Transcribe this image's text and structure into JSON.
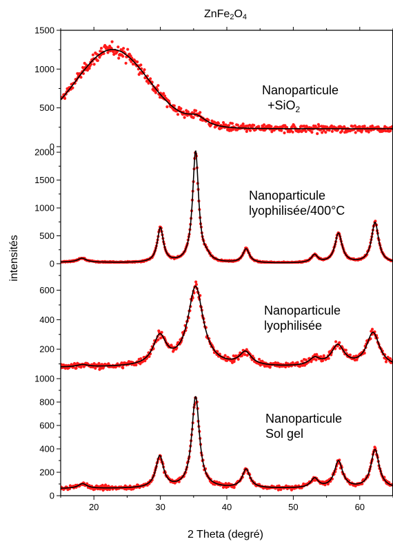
{
  "chart_data": {
    "type": "line",
    "title_parts": [
      {
        "text": "ZnFe",
        "sub": false
      },
      {
        "text": "2",
        "sub": true
      },
      {
        "text": "O",
        "sub": false
      },
      {
        "text": "4",
        "sub": true
      }
    ],
    "xlabel": "2 Theta (degré)",
    "ylabel": "intensités",
    "xlim": [
      15,
      65
    ],
    "xticks": [
      20,
      30,
      40,
      50,
      60
    ],
    "grid": false,
    "colors": {
      "measured": "#ff1a1a",
      "fit": "#000000",
      "axis": "#000000"
    },
    "series_styles": {
      "measured": "dotted red markers",
      "fit": "solid black line"
    },
    "panels": [
      {
        "annotation": [
          {
            "parts": [
              {
                "text": "Nanoparticule",
                "sub": false
              }
            ]
          },
          {
            "parts": [
              {
                "text": "+SiO",
                "sub": false
              },
              {
                "text": "2",
                "sub": true
              }
            ]
          }
        ],
        "ylim": [
          0,
          1500
        ],
        "yticks": [
          0,
          500,
          1000,
          1500
        ],
        "baseline": 230,
        "background": [
          {
            "amp": 1020,
            "center": 22.8,
            "width": 5.5
          }
        ],
        "peaks": [
          {
            "center": 35.5,
            "height": 110,
            "width": 1.8
          }
        ],
        "noise": 35
      },
      {
        "annotation": [
          {
            "parts": [
              {
                "text": "Nanoparticule",
                "sub": false
              }
            ]
          },
          {
            "parts": [
              {
                "text": "lyophilisée/400°C",
                "sub": false
              }
            ]
          }
        ],
        "ylim": [
          0,
          2100
        ],
        "yticks": [
          0,
          500,
          1000,
          1500,
          2000
        ],
        "baseline": 5,
        "background": [
          {
            "amp": 20,
            "center": 15,
            "width": 8
          }
        ],
        "peaks": [
          {
            "center": 18.2,
            "height": 70,
            "width": 0.8
          },
          {
            "center": 30.0,
            "height": 620,
            "width": 0.55
          },
          {
            "center": 35.3,
            "height": 2000,
            "width": 0.55
          },
          {
            "center": 37.0,
            "height": 70,
            "width": 0.6
          },
          {
            "center": 42.9,
            "height": 250,
            "width": 0.6
          },
          {
            "center": 53.2,
            "height": 140,
            "width": 0.6
          },
          {
            "center": 56.8,
            "height": 530,
            "width": 0.65
          },
          {
            "center": 62.3,
            "height": 730,
            "width": 0.65
          }
        ],
        "noise": 8
      },
      {
        "annotation": [
          {
            "parts": [
              {
                "text": "Nanoparticule",
                "sub": false
              }
            ]
          },
          {
            "parts": [
              {
                "text": "lyophilisée",
                "sub": false
              }
            ]
          }
        ],
        "ylim": [
          0,
          780
        ],
        "yticks": [
          200,
          400,
          600
        ],
        "baseline": 75,
        "background": [],
        "peaks": [
          {
            "center": 18.3,
            "height": 15,
            "width": 1.0
          },
          {
            "center": 29.9,
            "height": 195,
            "width": 1.2
          },
          {
            "center": 35.3,
            "height": 540,
            "width": 1.4
          },
          {
            "center": 42.8,
            "height": 90,
            "width": 1.1
          },
          {
            "center": 53.2,
            "height": 50,
            "width": 1.0
          },
          {
            "center": 56.7,
            "height": 140,
            "width": 1.2
          },
          {
            "center": 62.0,
            "height": 230,
            "width": 1.2
          }
        ],
        "noise": 14
      },
      {
        "annotation": [
          {
            "parts": [
              {
                "text": "Nanoparticule",
                "sub": false
              }
            ]
          },
          {
            "parts": [
              {
                "text": "Sol gel",
                "sub": false
              }
            ]
          }
        ],
        "ylim": [
          0,
          1000
        ],
        "yticks": [
          0,
          200,
          400,
          600,
          800,
          1000
        ],
        "baseline": 60,
        "background": [],
        "peaks": [
          {
            "center": 18.3,
            "height": 40,
            "width": 0.8
          },
          {
            "center": 29.9,
            "height": 270,
            "width": 0.7
          },
          {
            "center": 35.3,
            "height": 780,
            "width": 0.7
          },
          {
            "center": 42.9,
            "height": 160,
            "width": 0.7
          },
          {
            "center": 53.2,
            "height": 80,
            "width": 0.7
          },
          {
            "center": 56.8,
            "height": 230,
            "width": 0.75
          },
          {
            "center": 62.3,
            "height": 330,
            "width": 0.75
          }
        ],
        "noise": 12
      }
    ]
  }
}
